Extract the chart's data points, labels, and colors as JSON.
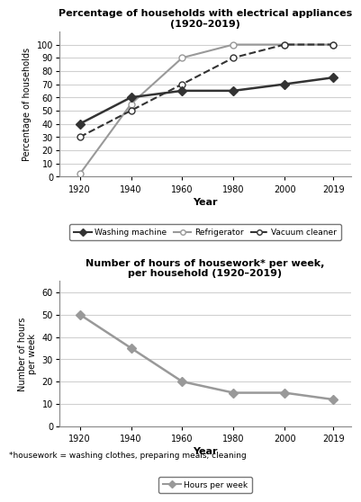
{
  "years": [
    1920,
    1940,
    1960,
    1980,
    2000,
    2019
  ],
  "washing_machine": [
    40,
    60,
    65,
    65,
    70,
    75
  ],
  "refrigerator": [
    2,
    55,
    90,
    100,
    100,
    100
  ],
  "vacuum_cleaner": [
    30,
    50,
    70,
    90,
    100,
    100
  ],
  "hours_per_week": [
    50,
    35,
    20,
    15,
    15,
    12
  ],
  "chart1_title": "Percentage of households with electrical appliances\n(1920–2019)",
  "chart1_ylabel": "Percentage of households",
  "chart1_xlabel": "Year",
  "chart1_ylim": [
    0,
    110
  ],
  "chart1_yticks": [
    0,
    10,
    20,
    30,
    40,
    50,
    60,
    70,
    80,
    90,
    100
  ],
  "chart2_title": "Number of hours of housework* per week,\nper household (1920–2019)",
  "chart2_ylabel": "Number of hours\nper week",
  "chart2_xlabel": "Year",
  "chart2_ylim": [
    0,
    65
  ],
  "chart2_yticks": [
    0,
    10,
    20,
    30,
    40,
    50,
    60
  ],
  "footnote": "*housework = washing clothes, preparing meals, cleaning",
  "gray_color": "#999999",
  "dark_color": "#333333",
  "grid_color": "#d0d0d0"
}
